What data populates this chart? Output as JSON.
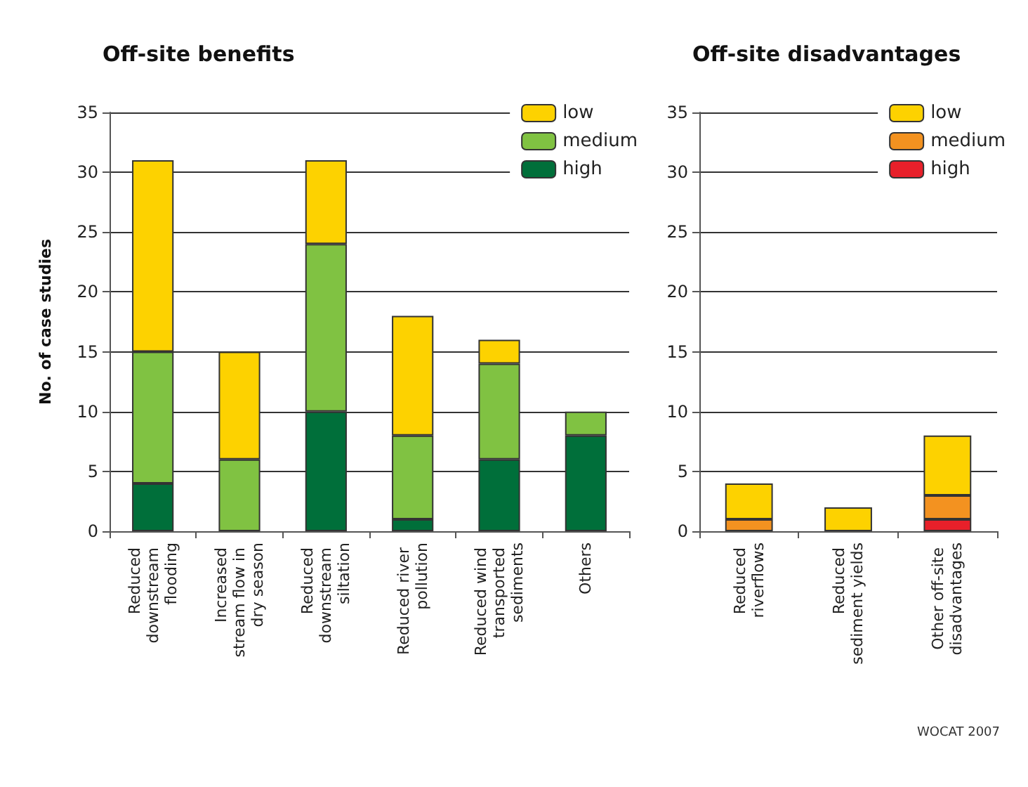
{
  "chart_data": [
    {
      "type": "bar",
      "title": "Off-site benefits",
      "ylabel": "No. of case studies",
      "categories": [
        "Reduced downstream flooding",
        "Increased stream flow in dry season",
        "Reduced downstream siltation",
        "Reduced river pollution",
        "Reduced wind transported sediments",
        "Others"
      ],
      "stacked": true,
      "series": [
        {
          "name": "high",
          "color": "#006f3a",
          "values": [
            4,
            null,
            10,
            1,
            6,
            8
          ]
        },
        {
          "name": "medium",
          "color": "#80c242",
          "values": [
            11,
            6,
            14,
            7,
            8,
            2
          ]
        },
        {
          "name": "low",
          "color": "#fdd200",
          "values": [
            16,
            9,
            7,
            10,
            2,
            null
          ]
        }
      ],
      "ylim": [
        0,
        35
      ],
      "yticks": [
        0,
        5,
        10,
        15,
        20,
        25,
        30,
        35
      ],
      "grid": "y",
      "legend": "top right"
    },
    {
      "type": "bar",
      "title": "Off-site disadvantages",
      "categories": [
        "Reduced riverflows",
        "Reduced sediment yields",
        "Other off-site disadvantages"
      ],
      "stacked": true,
      "series": [
        {
          "name": "high",
          "color": "#e8202a",
          "values": [
            null,
            null,
            1
          ]
        },
        {
          "name": "medium",
          "color": "#f39220",
          "values": [
            1,
            null,
            2
          ]
        },
        {
          "name": "low",
          "color": "#fdd200",
          "values": [
            3,
            2,
            5
          ]
        }
      ],
      "ylim": [
        0,
        35
      ],
      "yticks": [
        0,
        5,
        10,
        15,
        20,
        25,
        30,
        35
      ],
      "grid": "y",
      "legend": "top right",
      "annotations": [
        "WOCAT 2007"
      ]
    }
  ]
}
